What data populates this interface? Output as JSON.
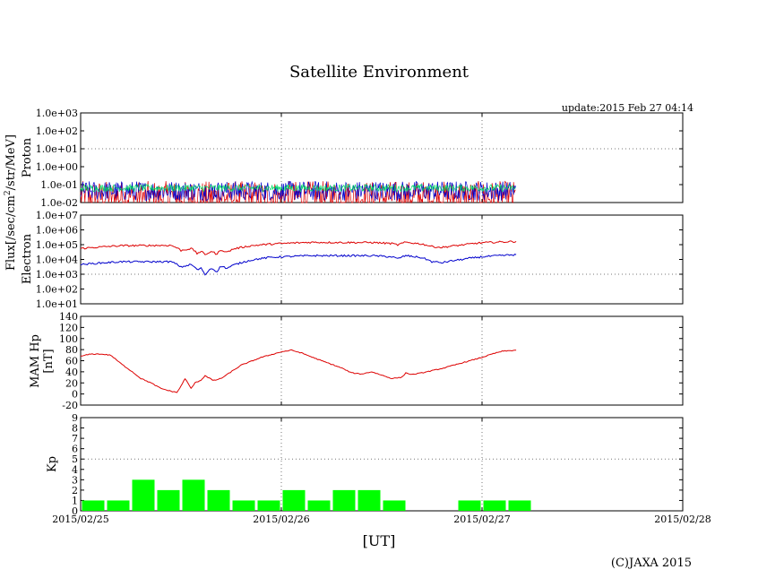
{
  "title": "Satellite Environment",
  "update_text": "update:2015 Feb 27 04:14",
  "copyright": "(C)JAXA 2015",
  "x_axis_label": "[UT]",
  "flux_label_parts": [
    "Flux[/sec/cm",
    "2",
    "/str/MeV]"
  ],
  "colors": {
    "red": "#dd0000",
    "blue": "#0000cc",
    "green": "#00dd66",
    "kp_bar": "#00ff00",
    "grid": "#777777"
  },
  "chart_data": [
    {
      "name": "proton",
      "type": "line",
      "ylabel": "Proton",
      "yscale": "log",
      "ylim": [
        0.01,
        1000
      ],
      "ytick_labels": [
        "1.0e-02",
        "1.0e-01",
        "1.0e+00",
        "1.0e+01",
        "1.0e+02",
        "1.0e+03"
      ],
      "ytick_values": [
        0.01,
        0.1,
        1,
        10,
        100,
        1000
      ],
      "grid_y": [
        10
      ],
      "x_range_days": [
        0,
        3
      ],
      "data_end_day": 2.17,
      "series": [
        {
          "name": "proton-red",
          "color": "red",
          "base": 0.02,
          "spread": 0.9
        },
        {
          "name": "proton-blue",
          "color": "blue",
          "base": 0.045,
          "spread": 0.55
        },
        {
          "name": "proton-green",
          "color": "green",
          "base": 0.065,
          "spread": 0.2
        }
      ]
    },
    {
      "name": "electron",
      "type": "line",
      "ylabel": "Electron",
      "yscale": "log",
      "ylim": [
        10,
        10000000
      ],
      "ytick_labels": [
        "1.0e+01",
        "1.0e+02",
        "1.0e+03",
        "1.0e+04",
        "1.0e+05",
        "1.0e+06",
        "1.0e+07"
      ],
      "ytick_values": [
        10,
        100,
        1000,
        10000,
        100000,
        1000000,
        10000000
      ],
      "grid_y": [
        1000
      ],
      "series": [
        {
          "name": "electron-red",
          "color": "red",
          "x": [
            0,
            0.2,
            0.45,
            0.5,
            0.55,
            0.58,
            0.6,
            0.62,
            0.65,
            0.68,
            0.7,
            0.73,
            0.76,
            0.8,
            0.85,
            0.95,
            1.0,
            1.15,
            1.3,
            1.45,
            1.55,
            1.58,
            1.62,
            1.7,
            1.75,
            1.8,
            1.9,
            2.0,
            2.17
          ],
          "y": [
            55000,
            85000,
            90000,
            40000,
            55000,
            25000,
            35000,
            20000,
            35000,
            22000,
            45000,
            30000,
            50000,
            65000,
            85000,
            110000,
            120000,
            145000,
            140000,
            140000,
            120000,
            95000,
            145000,
            110000,
            75000,
            65000,
            95000,
            135000,
            165000
          ]
        },
        {
          "name": "electron-blue",
          "color": "blue",
          "x": [
            0,
            0.2,
            0.45,
            0.5,
            0.55,
            0.58,
            0.6,
            0.62,
            0.65,
            0.68,
            0.7,
            0.73,
            0.76,
            0.8,
            0.85,
            0.95,
            1.0,
            1.15,
            1.3,
            1.45,
            1.55,
            1.58,
            1.62,
            1.7,
            1.75,
            1.8,
            1.9,
            2.0,
            2.17
          ],
          "y": [
            4500,
            7000,
            7000,
            3000,
            4500,
            2000,
            2500,
            800,
            2500,
            1500,
            3500,
            2500,
            4000,
            6000,
            9000,
            14000,
            15000,
            18000,
            18000,
            18000,
            15000,
            11000,
            18000,
            13000,
            7000,
            6000,
            10000,
            15000,
            21000
          ]
        }
      ]
    },
    {
      "name": "mam-hp",
      "type": "line",
      "ylabel": "MAM Hp",
      "ylabel2": "[nT]",
      "ylim": [
        -20,
        140
      ],
      "ytick_labels": [
        "-20",
        "0",
        "20",
        "40",
        "60",
        "80",
        "100",
        "120",
        "140"
      ],
      "ytick_values": [
        -20,
        0,
        20,
        40,
        60,
        80,
        100,
        120,
        140
      ],
      "grid_y": [],
      "series": [
        {
          "name": "hp-red",
          "color": "red",
          "x": [
            0,
            0.05,
            0.1,
            0.15,
            0.2,
            0.25,
            0.3,
            0.35,
            0.4,
            0.45,
            0.48,
            0.5,
            0.52,
            0.55,
            0.57,
            0.6,
            0.62,
            0.65,
            0.66,
            0.7,
            0.8,
            0.9,
            1.0,
            1.05,
            1.1,
            1.2,
            1.3,
            1.35,
            1.4,
            1.45,
            1.5,
            1.55,
            1.6,
            1.62,
            1.65,
            1.7,
            1.8,
            1.9,
            2.0,
            2.05,
            2.1,
            2.17
          ],
          "y": [
            68,
            72,
            72,
            70,
            55,
            42,
            28,
            20,
            10,
            5,
            3,
            14,
            28,
            10,
            20,
            25,
            33,
            27,
            24,
            28,
            52,
            66,
            76,
            79,
            74,
            60,
            47,
            38,
            36,
            40,
            34,
            28,
            30,
            38,
            35,
            38,
            46,
            56,
            66,
            72,
            77,
            79
          ]
        }
      ]
    },
    {
      "name": "kp",
      "type": "bar",
      "ylabel": "Kp",
      "ylim": [
        0,
        9
      ],
      "ytick_labels": [
        "0",
        "1",
        "2",
        "3",
        "4",
        "5",
        "6",
        "7",
        "8",
        "9"
      ],
      "ytick_values": [
        0,
        1,
        2,
        3,
        4,
        5,
        6,
        7,
        8,
        9
      ],
      "grid_y": [
        5
      ],
      "bar_width_days": 0.125,
      "x_start_days": [
        0,
        0.125,
        0.25,
        0.375,
        0.5,
        0.625,
        0.75,
        0.875,
        1.0,
        1.125,
        1.25,
        1.375,
        1.5,
        1.875,
        2.0,
        2.125
      ],
      "values": [
        1,
        1,
        3,
        2,
        3,
        2,
        1,
        1,
        2,
        1,
        2,
        2,
        1,
        1,
        1,
        1
      ]
    }
  ],
  "x_axis": {
    "tick_labels": [
      "2015/02/25",
      "2015/02/26",
      "2015/02/27",
      "2015/02/28"
    ],
    "tick_days": [
      0,
      1,
      2,
      3
    ]
  }
}
